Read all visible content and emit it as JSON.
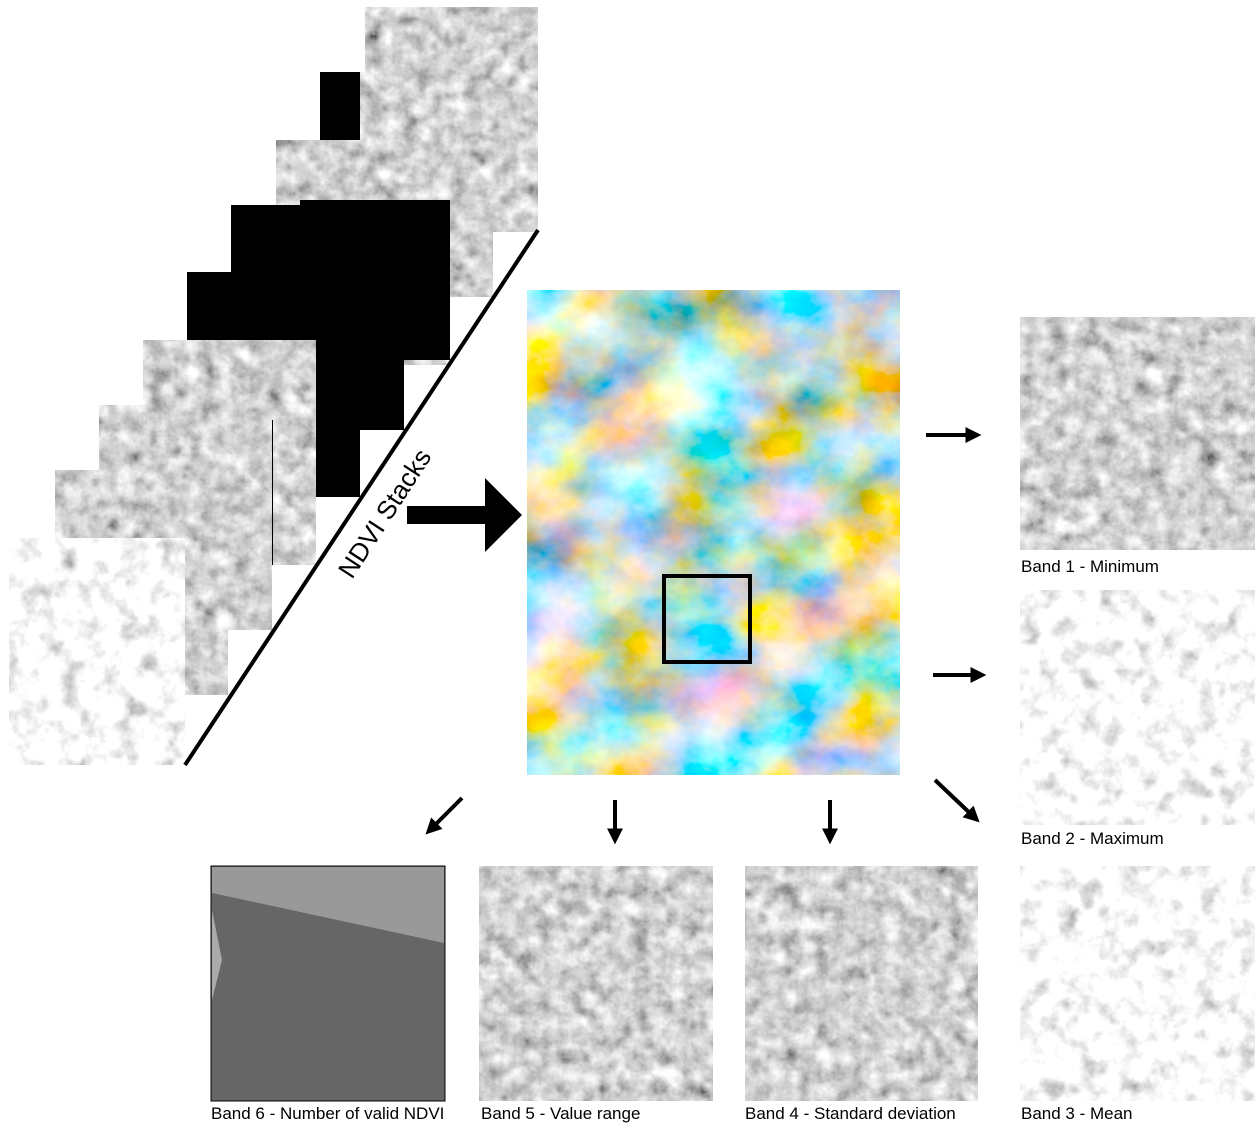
{
  "stack": {
    "label": "NDVI Stacks"
  },
  "bands": [
    {
      "label": "Band 1 - Minimum"
    },
    {
      "label": "Band 2 - Maximum"
    },
    {
      "label": "Band 3 - Mean"
    },
    {
      "label": "Band 4 - Standard deviation"
    },
    {
      "label": "Band 5 - Value range"
    },
    {
      "label": "Band 6 - Number of valid NDVI"
    }
  ]
}
